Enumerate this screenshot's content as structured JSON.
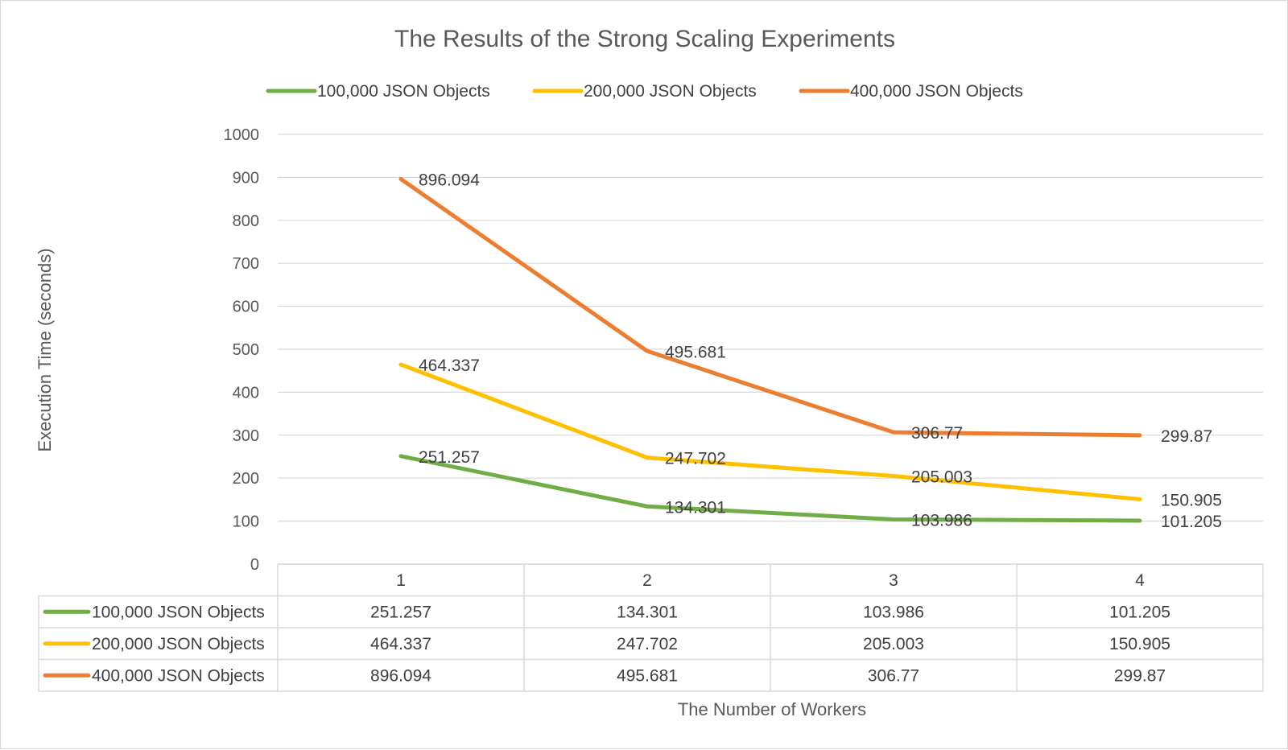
{
  "chart_data": {
    "type": "line",
    "title": "The Results of the Strong Scaling Experiments",
    "xlabel": "The Number of Workers",
    "ylabel": "Execution Time (seconds)",
    "categories": [
      "1",
      "2",
      "3",
      "4"
    ],
    "ylim": [
      0,
      1000
    ],
    "yticks": [
      "0",
      "100",
      "200",
      "300",
      "400",
      "500",
      "600",
      "700",
      "800",
      "900",
      "1000"
    ],
    "grid": true,
    "legend_position": "top",
    "data_table": true,
    "series": [
      {
        "name": "100,000 JSON Objects",
        "color": "#70ad47",
        "values": [
          251.257,
          134.301,
          103.986,
          101.205
        ],
        "labels": [
          "251.257",
          "134.301",
          "103.986",
          "101.205"
        ]
      },
      {
        "name": "200,000 JSON Objects",
        "color": "#ffc000",
        "values": [
          464.337,
          247.702,
          205.003,
          150.905
        ],
        "labels": [
          "464.337",
          "247.702",
          "205.003",
          "150.905"
        ]
      },
      {
        "name": "400,000 JSON Objects",
        "color": "#ed7d31",
        "values": [
          896.094,
          495.681,
          306.77,
          299.87
        ],
        "labels": [
          "896.094",
          "495.681",
          "306.77",
          "299.87"
        ]
      }
    ]
  }
}
